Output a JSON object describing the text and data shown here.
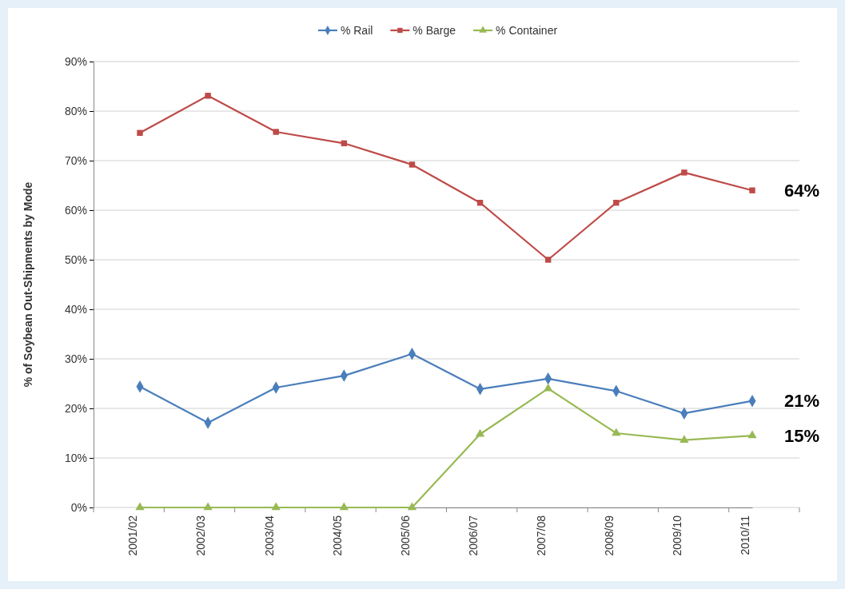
{
  "chart_data": {
    "type": "line",
    "ylabel": "% of Soybean Out-Shipments by Mode",
    "categories": [
      "2001/02",
      "2002/03",
      "2003/04",
      "2004/05",
      "2005/06",
      "2006/07",
      "2007/08",
      "2008/09",
      "2009/10",
      "2010/11"
    ],
    "series": [
      {
        "name": "% Rail",
        "color": "#4a7ebb",
        "marker": "diamond",
        "values": [
          24.4,
          17.1,
          24.2,
          26.6,
          31.0,
          23.9,
          26.0,
          23.5,
          19.0,
          21.5
        ]
      },
      {
        "name": "% Barge",
        "color": "#be4b48",
        "marker": "square",
        "values": [
          75.6,
          83.1,
          75.8,
          73.5,
          69.2,
          61.5,
          50.0,
          61.5,
          67.6,
          64.0
        ]
      },
      {
        "name": "% Container",
        "color": "#98b954",
        "marker": "triangle",
        "values": [
          0,
          0,
          0,
          0,
          0,
          14.8,
          24.0,
          15.0,
          13.6,
          14.5
        ]
      }
    ],
    "ylim": [
      0,
      90
    ],
    "yticks": [
      {
        "value": 0,
        "label": "0%"
      },
      {
        "value": 10,
        "label": "10%"
      },
      {
        "value": 20,
        "label": "20%"
      },
      {
        "value": 30,
        "label": "30%"
      },
      {
        "value": 40,
        "label": "40%"
      },
      {
        "value": 50,
        "label": "50%"
      },
      {
        "value": 60,
        "label": "60%"
      },
      {
        "value": 70,
        "label": "70%"
      },
      {
        "value": 80,
        "label": "80%"
      },
      {
        "value": 90,
        "label": "90%"
      }
    ],
    "grid": "y",
    "legend": "top",
    "line_style": "solid",
    "annotations": [
      {
        "text": "64%",
        "x": "2010/11",
        "y": 64
      },
      {
        "text": "21%",
        "x": "2010/11",
        "y": 21.5
      },
      {
        "text": "15%",
        "x": "2010/11",
        "y": 14.5
      }
    ]
  }
}
